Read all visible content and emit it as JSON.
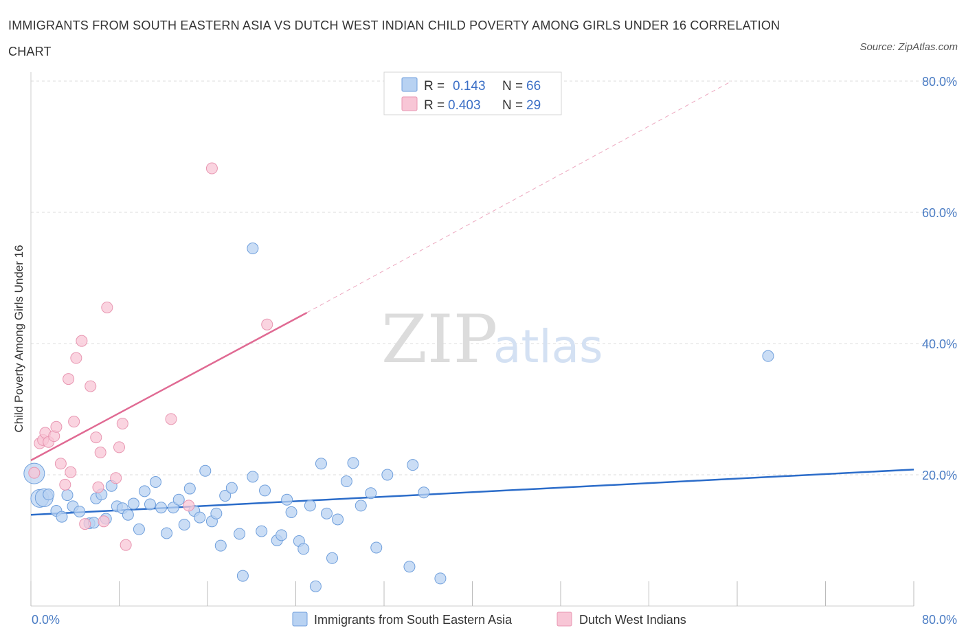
{
  "title": "IMMIGRANTS FROM SOUTH EASTERN ASIA VS DUTCH WEST INDIAN CHILD POVERTY AMONG GIRLS UNDER 16 CORRELATION CHART",
  "source": "Source: ZipAtlas.com",
  "watermark": {
    "zip": "ZIP",
    "atlas": "atlas"
  },
  "colors": {
    "blue_fill": "#b8d2f2",
    "blue_stroke": "#6f9fdc",
    "blue_line": "#2b6cc9",
    "pink_fill": "#f8c6d6",
    "pink_stroke": "#e896b1",
    "pink_line": "#e06a93",
    "grid": "#dddddd",
    "axis_text": "#4a7cc4"
  },
  "legend": {
    "rows": [
      {
        "r_label": "R = ",
        "r_value": "0.143",
        "n_label": "N = ",
        "n_value": "66"
      },
      {
        "r_label": "R = ",
        "r_value": "0.403",
        "n_label": "N = ",
        "n_value": "29"
      }
    ]
  },
  "chart_data": {
    "type": "scatter",
    "title": "IMMIGRANTS FROM SOUTH EASTERN ASIA VS DUTCH WEST INDIAN CHILD POVERTY AMONG GIRLS UNDER 16 CORRELATION CHART",
    "xlabel": "",
    "ylabel": "Child Poverty Among Girls Under 16",
    "xlim": [
      0,
      80
    ],
    "ylim": [
      0,
      80
    ],
    "x_tick_labels": [
      "0.0%",
      "80.0%"
    ],
    "y_ticks": [
      20,
      40,
      60,
      80
    ],
    "y_tick_labels": [
      "20.0%",
      "40.0%",
      "60.0%",
      "80.0%"
    ],
    "grid": true,
    "legend_position": "top-center",
    "series": [
      {
        "name": "Immigrants from South Eastern Asia",
        "color": "#6f9fdc",
        "R": 0.143,
        "N": 66,
        "trend": {
          "x": [
            0,
            80
          ],
          "y": [
            13.9,
            20.8
          ],
          "style": "solid"
        },
        "points": [
          [
            0.3,
            20.2
          ],
          [
            0.8,
            16.4
          ],
          [
            1.2,
            16.5
          ],
          [
            1.6,
            17.0
          ],
          [
            2.3,
            14.5
          ],
          [
            2.8,
            13.6
          ],
          [
            3.3,
            16.9
          ],
          [
            3.8,
            15.2
          ],
          [
            4.4,
            14.4
          ],
          [
            5.3,
            12.6
          ],
          [
            5.7,
            12.7
          ],
          [
            5.9,
            16.4
          ],
          [
            6.4,
            17.0
          ],
          [
            6.8,
            13.3
          ],
          [
            7.3,
            18.3
          ],
          [
            7.8,
            15.2
          ],
          [
            8.3,
            14.9
          ],
          [
            8.8,
            13.9
          ],
          [
            9.3,
            15.6
          ],
          [
            9.8,
            11.7
          ],
          [
            10.3,
            17.5
          ],
          [
            10.8,
            15.5
          ],
          [
            11.3,
            18.9
          ],
          [
            11.8,
            15.0
          ],
          [
            12.3,
            11.1
          ],
          [
            12.9,
            15.0
          ],
          [
            13.4,
            16.2
          ],
          [
            13.9,
            12.4
          ],
          [
            14.4,
            17.9
          ],
          [
            14.8,
            14.5
          ],
          [
            15.3,
            13.5
          ],
          [
            15.8,
            20.6
          ],
          [
            16.4,
            12.9
          ],
          [
            16.8,
            14.1
          ],
          [
            17.2,
            9.2
          ],
          [
            17.6,
            16.8
          ],
          [
            18.2,
            18.0
          ],
          [
            18.9,
            11.0
          ],
          [
            19.2,
            4.6
          ],
          [
            20.1,
            19.7
          ],
          [
            20.1,
            54.5
          ],
          [
            20.9,
            11.4
          ],
          [
            21.2,
            17.6
          ],
          [
            22.3,
            10.0
          ],
          [
            22.7,
            10.8
          ],
          [
            23.2,
            16.2
          ],
          [
            23.6,
            14.3
          ],
          [
            24.3,
            9.9
          ],
          [
            24.7,
            8.7
          ],
          [
            25.3,
            15.3
          ],
          [
            25.8,
            3.0
          ],
          [
            26.3,
            21.7
          ],
          [
            26.8,
            14.1
          ],
          [
            27.3,
            7.3
          ],
          [
            27.8,
            13.2
          ],
          [
            28.6,
            19.0
          ],
          [
            29.2,
            21.8
          ],
          [
            29.9,
            15.3
          ],
          [
            30.8,
            17.2
          ],
          [
            31.3,
            8.9
          ],
          [
            32.3,
            20.0
          ],
          [
            34.3,
            6.0
          ],
          [
            34.6,
            21.5
          ],
          [
            35.6,
            17.3
          ],
          [
            37.1,
            4.2
          ],
          [
            66.8,
            38.1
          ]
        ]
      },
      {
        "name": "Dutch West Indians",
        "color": "#e896b1",
        "R": 0.403,
        "N": 29,
        "trend": {
          "x": [
            0,
            25
          ],
          "y": [
            22.2,
            44.7
          ],
          "style": "solid",
          "dashed_extension_x": [
            25,
            63.5
          ],
          "dashed_extension_y": [
            44.7,
            80.0
          ]
        },
        "points": [
          [
            0.3,
            20.3
          ],
          [
            0.8,
            24.8
          ],
          [
            1.1,
            25.3
          ],
          [
            1.3,
            26.4
          ],
          [
            1.6,
            25.0
          ],
          [
            2.1,
            25.9
          ],
          [
            2.3,
            27.3
          ],
          [
            2.7,
            21.7
          ],
          [
            3.1,
            18.5
          ],
          [
            3.4,
            34.6
          ],
          [
            3.6,
            20.4
          ],
          [
            3.9,
            28.1
          ],
          [
            4.1,
            37.8
          ],
          [
            4.6,
            40.4
          ],
          [
            4.9,
            12.5
          ],
          [
            5.4,
            33.5
          ],
          [
            5.9,
            25.7
          ],
          [
            6.1,
            18.1
          ],
          [
            6.3,
            23.4
          ],
          [
            6.6,
            12.9
          ],
          [
            6.9,
            45.5
          ],
          [
            7.7,
            19.5
          ],
          [
            8.0,
            24.2
          ],
          [
            8.3,
            27.8
          ],
          [
            8.6,
            9.3
          ],
          [
            12.7,
            28.5
          ],
          [
            14.3,
            15.3
          ],
          [
            16.4,
            66.7
          ],
          [
            21.4,
            42.9
          ]
        ]
      }
    ]
  },
  "bottom_legend": {
    "items": [
      {
        "label": "Immigrants from South Eastern Asia"
      },
      {
        "label": "Dutch West Indians"
      }
    ]
  }
}
